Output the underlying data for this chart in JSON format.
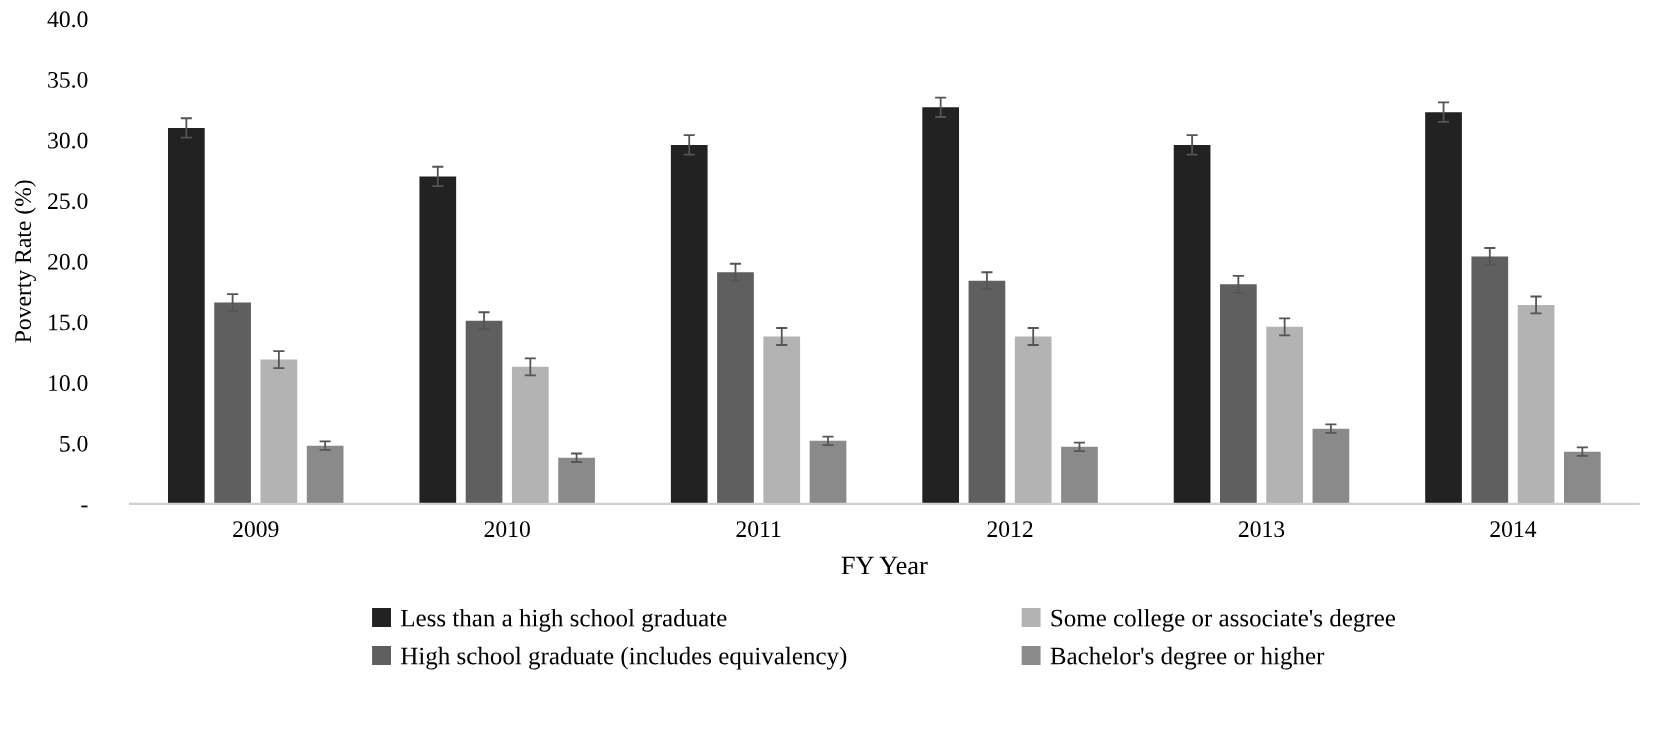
{
  "chart_data": {
    "type": "bar",
    "xlabel": "FY Year",
    "ylabel": "Poverty Rate (%)",
    "categories": [
      "2009",
      "2010",
      "2011",
      "2012",
      "2013",
      "2014"
    ],
    "series": [
      {
        "name": "Less than a high school graduate",
        "color": "#222222",
        "values": [
          31.0,
          27.0,
          29.6,
          32.7,
          29.6,
          32.3
        ],
        "errors": [
          0.8,
          0.8,
          0.8,
          0.8,
          0.8,
          0.8
        ]
      },
      {
        "name": "High school graduate (includes equivalency)",
        "color": "#5f5f5f",
        "values": [
          16.6,
          15.1,
          19.1,
          18.4,
          18.1,
          20.4
        ],
        "errors": [
          0.7,
          0.7,
          0.7,
          0.7,
          0.7,
          0.7
        ]
      },
      {
        "name": "Some college or associate's degree",
        "color": "#b3b3b3",
        "values": [
          11.9,
          11.3,
          13.8,
          13.8,
          14.6,
          16.4
        ],
        "errors": [
          0.7,
          0.7,
          0.7,
          0.7,
          0.7,
          0.7
        ]
      },
      {
        "name": "Bachelor's degree or higher",
        "color": "#8a8a8a",
        "values": [
          4.8,
          3.8,
          5.2,
          4.7,
          6.2,
          4.3
        ],
        "errors": [
          0.35,
          0.35,
          0.35,
          0.35,
          0.35,
          0.35
        ]
      }
    ],
    "ylim": [
      0,
      40
    ],
    "yticks": [
      {
        "value": 0,
        "label": "-"
      },
      {
        "value": 5,
        "label": "5.0"
      },
      {
        "value": 10,
        "label": "10.0"
      },
      {
        "value": 15,
        "label": "15.0"
      },
      {
        "value": 20,
        "label": "20.0"
      },
      {
        "value": 25,
        "label": "25.0"
      },
      {
        "value": 30,
        "label": "30.0"
      },
      {
        "value": 35,
        "label": "35.0"
      },
      {
        "value": 40,
        "label": "40.0"
      }
    ],
    "grid": false,
    "legend": "bottom"
  }
}
